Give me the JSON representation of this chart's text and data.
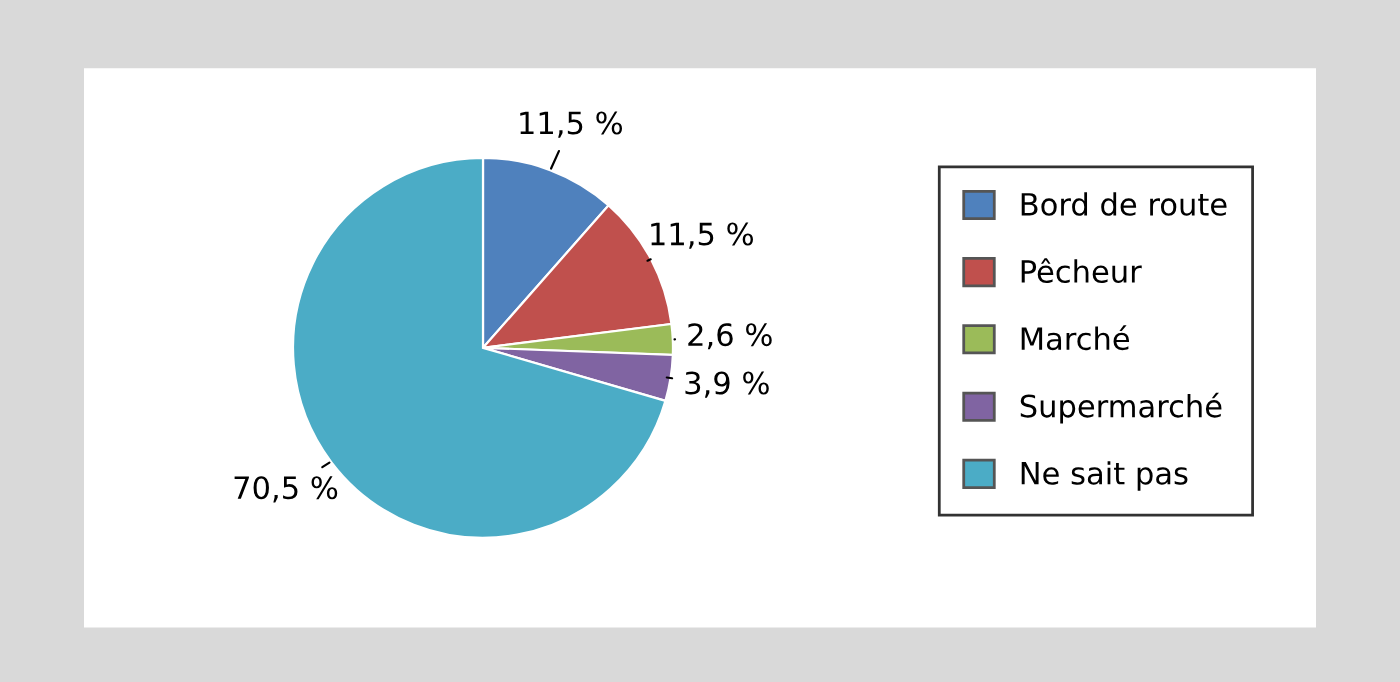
{
  "chart_data": {
    "type": "pie",
    "categories": [
      "Bord de route",
      "Pêcheur",
      "Marché",
      "Supermarché",
      "Ne sait pas"
    ],
    "values": [
      11.5,
      11.5,
      2.6,
      3.9,
      70.5
    ],
    "value_labels": [
      "11,5 %",
      "11,5 %",
      "2,6 %",
      "3,9 %",
      "70,5 %"
    ],
    "colors": [
      "#4f81bd",
      "#c0504d",
      "#9bbb59",
      "#8064a2",
      "#4bacc6"
    ],
    "legend": "right"
  }
}
